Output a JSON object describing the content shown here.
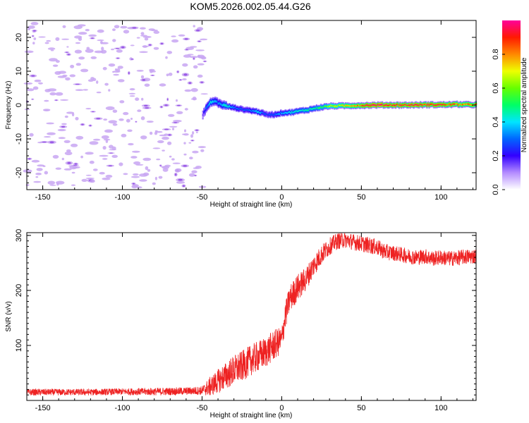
{
  "title": "KOM5.2026.002.05.44.G26",
  "colors": {
    "snr_line": "#ee2222",
    "noise_blob": "#c8a6f2",
    "noise_core": "#9a5ae6"
  },
  "chart_data": [
    {
      "type": "heatmap",
      "name": "spectrogram",
      "title": "KOM5.2026.002.05.44.G26",
      "xlabel": "Height of straight line (km)",
      "ylabel": "Frequency (Hz)",
      "xlim": [
        -160,
        122
      ],
      "ylim": [
        -25,
        25
      ],
      "xticks": [
        "-150",
        "-100",
        "-50",
        "0",
        "50",
        "100"
      ],
      "xtick_values": [
        -150,
        -100,
        -50,
        0,
        50,
        100
      ],
      "yticks": [
        "-20",
        "-10",
        "0",
        "10",
        "20"
      ],
      "ytick_values": [
        -20,
        -10,
        0,
        10,
        20
      ],
      "colorbar": {
        "label": "Normalized spectral amplitude",
        "range": [
          0,
          1
        ],
        "ticks": [
          "0.0",
          "0.2",
          "0.4",
          "0.6",
          "0.8"
        ],
        "tick_values": [
          0,
          0.2,
          0.4,
          0.6,
          0.8
        ],
        "colormap": [
          [
            0.0,
            "#ffffff"
          ],
          [
            0.1,
            "#b48cff"
          ],
          [
            0.2,
            "#3300ff"
          ],
          [
            0.3,
            "#0066ff"
          ],
          [
            0.4,
            "#00e5ff"
          ],
          [
            0.5,
            "#00ff66"
          ],
          [
            0.6,
            "#66ff00"
          ],
          [
            0.7,
            "#eeff00"
          ],
          [
            0.8,
            "#ff8800"
          ],
          [
            0.9,
            "#ff1a00"
          ],
          [
            1.0,
            "#ff0099"
          ]
        ]
      },
      "signal_ridge": {
        "x": [
          -50,
          -48,
          -45,
          -42,
          -40,
          -35,
          -30,
          -25,
          -20,
          -15,
          -10,
          -5,
          0,
          5,
          10,
          15,
          20,
          25,
          30,
          40,
          50,
          60,
          70,
          80,
          90,
          100,
          110,
          120
        ],
        "freq": [
          -3,
          -1,
          0.8,
          1.2,
          0.5,
          -0.3,
          -0.8,
          -1.3,
          -1.6,
          -2.0,
          -2.8,
          -2.8,
          -2.3,
          -2.2,
          -1.8,
          -1.5,
          -1.0,
          -0.6,
          -0.3,
          -0.2,
          -0.1,
          0,
          0,
          0,
          0.1,
          0.1,
          0.2,
          0.1
        ],
        "amplitude": [
          0.15,
          0.3,
          0.4,
          0.35,
          0.32,
          0.45,
          0.3,
          0.28,
          0.32,
          0.4,
          0.25,
          0.3,
          0.36,
          0.4,
          0.42,
          0.45,
          0.5,
          0.55,
          0.65,
          0.7,
          0.85,
          0.95,
          0.9,
          0.92,
          0.88,
          0.9,
          0.85,
          0.8
        ]
      },
      "noise_region": {
        "x_range": [
          -160,
          -48
        ],
        "amplitude": [
          0.05,
          0.15
        ]
      }
    },
    {
      "type": "line",
      "name": "snr",
      "xlabel": "Height of straight line (km)",
      "ylabel": "SNR (v/v)",
      "xlim": [
        -160,
        122
      ],
      "ylim": [
        0,
        305
      ],
      "xticks": [
        "-150",
        "-100",
        "-50",
        "0",
        "50",
        "100"
      ],
      "xtick_values": [
        -150,
        -100,
        -50,
        0,
        50,
        100
      ],
      "yticks": [
        "100",
        "200",
        "300"
      ],
      "ytick_values": [
        100,
        200,
        300
      ],
      "series": [
        {
          "name": "SNR",
          "x": [
            -160,
            -140,
            -120,
            -100,
            -80,
            -60,
            -50,
            -45,
            -40,
            -35,
            -30,
            -25,
            -20,
            -15,
            -10,
            -5,
            0,
            2,
            5,
            10,
            15,
            20,
            25,
            30,
            35,
            40,
            45,
            50,
            55,
            60,
            65,
            70,
            75,
            80,
            85,
            90,
            95,
            100,
            105,
            110,
            115,
            120
          ],
          "values": [
            15,
            15,
            15,
            16,
            16,
            17,
            18,
            25,
            35,
            45,
            55,
            62,
            72,
            80,
            88,
            100,
            110,
            150,
            185,
            205,
            220,
            245,
            265,
            280,
            290,
            292,
            288,
            285,
            282,
            278,
            270,
            268,
            265,
            262,
            260,
            262,
            258,
            260,
            258,
            259,
            261,
            262
          ],
          "noise_amplitude": [
            6,
            6,
            6,
            6,
            7,
            7,
            8,
            18,
            22,
            25,
            28,
            28,
            28,
            28,
            28,
            28,
            25,
            25,
            25,
            25,
            22,
            20,
            18,
            16,
            15,
            15,
            15,
            15,
            15,
            15,
            15,
            14,
            14,
            14,
            14,
            14,
            14,
            14,
            14,
            14,
            14,
            14
          ]
        }
      ]
    }
  ]
}
